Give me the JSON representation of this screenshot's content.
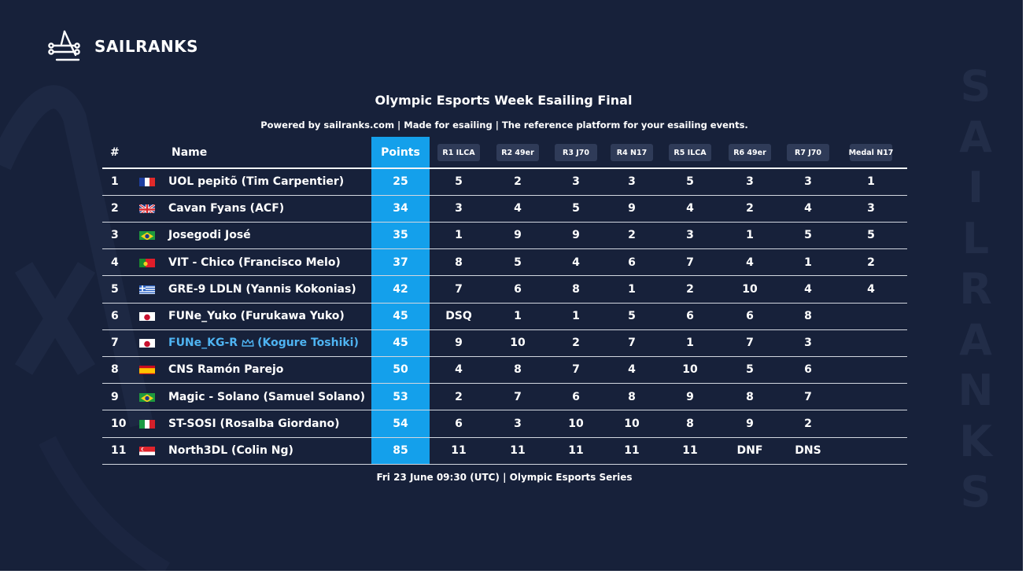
{
  "brand": {
    "name": "SAILRANKS",
    "vertical_letters": [
      "S",
      "A",
      "I",
      "L",
      "R",
      "A",
      "N",
      "K",
      "S"
    ]
  },
  "title": "Olympic Esports Week Esailing Final",
  "subtitle": "Powered by sailranks.com | Made for esailing | The reference platform for your esailing events.",
  "footer": "Fri 23 June 09:30 (UTC) | Olympic Esports Series",
  "colors": {
    "background": "#17213a",
    "points_column": "#14a0eb",
    "highlight_name": "#4fb4f2",
    "race_pill": "#2f3b58"
  },
  "table": {
    "headers": {
      "rank": "#",
      "name": "Name",
      "points": "Points"
    },
    "races": [
      "R1 ILCA",
      "R2 49er",
      "R3 J70",
      "R4 N17",
      "R5 ILCA",
      "R6 49er",
      "R7 J70",
      "Medal N17"
    ],
    "rows": [
      {
        "rank": "1",
        "flag": "france-flag",
        "name": "UOL pepitõ (Tim Carpentier)",
        "points": "25",
        "results": [
          "5",
          "2",
          "3",
          "3",
          "5",
          "3",
          "3",
          "1"
        ]
      },
      {
        "rank": "2",
        "flag": "uk-flag",
        "name": "Cavan Fyans (ACF)",
        "points": "34",
        "results": [
          "3",
          "4",
          "5",
          "9",
          "4",
          "2",
          "4",
          "3"
        ]
      },
      {
        "rank": "3",
        "flag": "brazil-flag",
        "name": "Josegodi José",
        "points": "35",
        "results": [
          "1",
          "9",
          "9",
          "2",
          "3",
          "1",
          "5",
          "5"
        ]
      },
      {
        "rank": "4",
        "flag": "portugal-flag",
        "name": "VIT - Chico (Francisco Melo)",
        "points": "37",
        "results": [
          "8",
          "5",
          "4",
          "6",
          "7",
          "4",
          "1",
          "2"
        ]
      },
      {
        "rank": "5",
        "flag": "greece-flag",
        "name": "GRE-9 LDLN (Yannis Kokonias)",
        "points": "42",
        "results": [
          "7",
          "6",
          "8",
          "1",
          "2",
          "10",
          "4",
          "4"
        ]
      },
      {
        "rank": "6",
        "flag": "japan-flag",
        "name": "FUNe_Yuko (Furukawa Yuko)",
        "points": "45",
        "results": [
          "DSQ",
          "1",
          "1",
          "5",
          "6",
          "6",
          "8",
          ""
        ]
      },
      {
        "rank": "7",
        "flag": "japan-flag",
        "name": "FUNe_KG-R",
        "name_icon": "crown-icon",
        "name_suffix": "(Kogure Toshiki)",
        "highlight": true,
        "points": "45",
        "results": [
          "9",
          "10",
          "2",
          "7",
          "1",
          "7",
          "3",
          ""
        ]
      },
      {
        "rank": "8",
        "flag": "spain-flag",
        "name": "CNS Ramón Parejo",
        "points": "50",
        "results": [
          "4",
          "8",
          "7",
          "4",
          "10",
          "5",
          "6",
          ""
        ]
      },
      {
        "rank": "9",
        "flag": "brazil-flag",
        "name": "Magic - Solano (Samuel Solano)",
        "points": "53",
        "results": [
          "2",
          "7",
          "6",
          "8",
          "9",
          "8",
          "7",
          ""
        ]
      },
      {
        "rank": "10",
        "flag": "italy-flag",
        "name": "ST-SOSI (Rosalba Giordano)",
        "points": "54",
        "results": [
          "6",
          "3",
          "10",
          "10",
          "8",
          "9",
          "2",
          ""
        ]
      },
      {
        "rank": "11",
        "flag": "singapore-flag",
        "name": "North3DL (Colin Ng)",
        "points": "85",
        "results": [
          "11",
          "11",
          "11",
          "11",
          "11",
          "DNF",
          "DNS",
          ""
        ]
      }
    ]
  }
}
